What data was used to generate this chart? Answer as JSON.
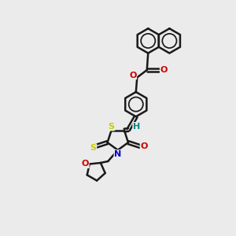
{
  "background_color": "#ebebeb",
  "line_color": "#1a1a1a",
  "bond_width": 1.8,
  "atom_colors": {
    "S": "#cccc00",
    "N": "#0000cc",
    "O": "#cc0000",
    "H": "#008888"
  },
  "font_size": 8,
  "fig_size": [
    3.0,
    3.0
  ],
  "dpi": 100
}
